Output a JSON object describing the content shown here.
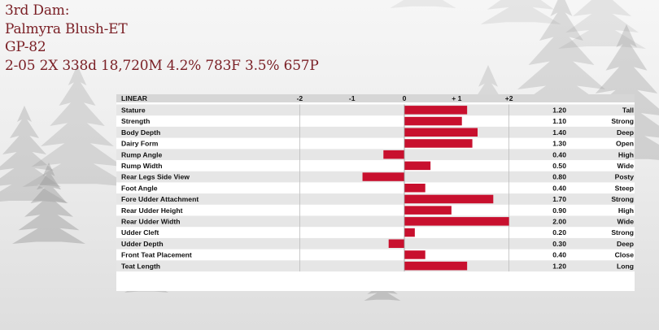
{
  "header": {
    "line1": "3rd Dam:",
    "line2": "Palmyra Blush-ET",
    "line3": "GP-82",
    "line4": "2-05 2X 338d 18,720M 4.2% 783F 3.5% 657P"
  },
  "colors": {
    "bar": "#c8102e",
    "header_row": "#d6d6d6",
    "stripe": "#e6e6e6",
    "title": "#7a1f25"
  },
  "chart_data": {
    "type": "bar",
    "orientation": "horizontal",
    "title": "LINEAR",
    "x_ticks": [
      "-2",
      "-1",
      "0",
      "+ 1",
      "+2"
    ],
    "xlim": [
      -2,
      2
    ],
    "categories": [
      "Stature",
      "Strength",
      "Body Depth",
      "Dairy Form",
      "Rump Angle",
      "Rump Width",
      "Rear Legs Side View",
      "Foot Angle",
      "Fore Udder Attachment",
      "Rear Udder Height",
      "Rear Udder Width",
      "Udder Cleft",
      "Udder Depth",
      "Front Teat Placement",
      "Teat Length"
    ],
    "values": [
      1.2,
      1.1,
      1.4,
      1.3,
      -0.4,
      0.5,
      -0.8,
      0.4,
      1.7,
      0.9,
      2.0,
      0.2,
      -0.3,
      0.4,
      1.2
    ],
    "value_labels": [
      "1.20",
      "1.10",
      "1.40",
      "1.30",
      "0.40",
      "0.50",
      "0.80",
      "0.40",
      "1.70",
      "0.90",
      "2.00",
      "0.20",
      "0.30",
      "0.40",
      "1.20"
    ],
    "descriptors": [
      "Tall",
      "Strong",
      "Deep",
      "Open",
      "High",
      "Wide",
      "Posty",
      "Steep",
      "Strong",
      "High",
      "Wide",
      "Strong",
      "Deep",
      "Close",
      "Long"
    ]
  }
}
